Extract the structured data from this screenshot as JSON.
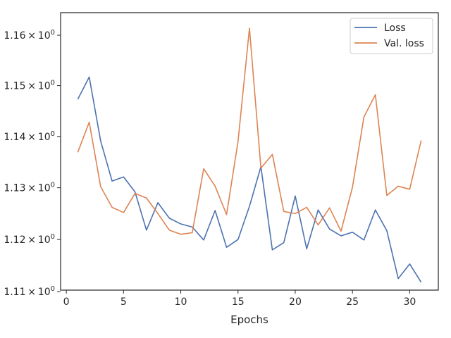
{
  "chart_data": {
    "type": "line",
    "title": "",
    "xlabel": "Epochs",
    "ylabel": "",
    "yscale": "log",
    "xlim": [
      -0.5,
      32.5
    ],
    "ylim": [
      1.1103,
      1.1645
    ],
    "x_ticks": [
      0,
      5,
      10,
      15,
      20,
      25,
      30
    ],
    "y_ticks": [
      {
        "value": 1.11,
        "label_base": "1.11",
        "label_exp": "0"
      },
      {
        "value": 1.12,
        "label_base": "1.12",
        "label_exp": "0"
      },
      {
        "value": 1.13,
        "label_base": "1.13",
        "label_exp": "0"
      },
      {
        "value": 1.14,
        "label_base": "1.14",
        "label_exp": "0"
      },
      {
        "value": 1.15,
        "label_base": "1.15",
        "label_exp": "0"
      },
      {
        "value": 1.16,
        "label_base": "1.16",
        "label_exp": "0"
      }
    ],
    "tick_multiplier": "×",
    "tick_base": "10",
    "x": [
      1,
      2,
      3,
      4,
      5,
      6,
      7,
      8,
      9,
      10,
      11,
      12,
      13,
      14,
      15,
      16,
      17,
      18,
      19,
      20,
      21,
      22,
      23,
      24,
      25,
      26,
      27,
      28,
      29,
      30,
      31
    ],
    "series": [
      {
        "name": "Loss",
        "color": "#4c72b0",
        "values": [
          1.1473,
          1.1517,
          1.1391,
          1.1313,
          1.1321,
          1.1292,
          1.1218,
          1.1271,
          1.1241,
          1.123,
          1.1224,
          1.1199,
          1.1256,
          1.1185,
          1.12,
          1.1264,
          1.1341,
          1.118,
          1.1194,
          1.1284,
          1.1182,
          1.1257,
          1.122,
          1.1207,
          1.1214,
          1.1199,
          1.1257,
          1.1217,
          1.1125,
          1.1153,
          1.1118
        ]
      },
      {
        "name": "Val. loss",
        "color": "#dd8452",
        "values": [
          1.1369,
          1.1428,
          1.1302,
          1.1262,
          1.1252,
          1.1289,
          1.128,
          1.125,
          1.1218,
          1.121,
          1.1213,
          1.1337,
          1.1303,
          1.1248,
          1.139,
          1.1614,
          1.1338,
          1.1365,
          1.1254,
          1.125,
          1.1262,
          1.1228,
          1.1261,
          1.1216,
          1.1301,
          1.1438,
          1.1482,
          1.1285,
          1.1303,
          1.1297,
          1.1392
        ]
      }
    ],
    "grid": false,
    "legend_position": "top-right"
  }
}
